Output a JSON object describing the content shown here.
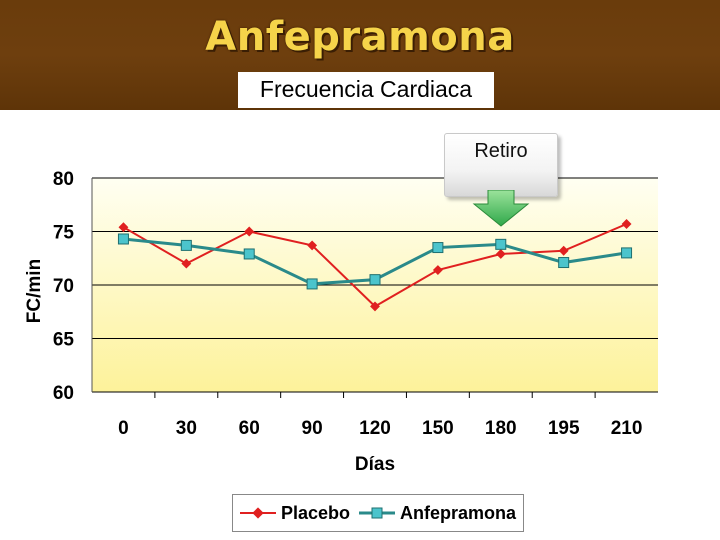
{
  "banner": {
    "title": "Anfepramona",
    "subtitle": "Frecuencia Cardiaca"
  },
  "annotation": {
    "label": "Retiro"
  },
  "colors": {
    "placebo": "#e02020",
    "anfepramona": "#2a8a8a",
    "marker_anf": "#4cc4cc"
  },
  "chart_data": {
    "type": "line",
    "categories": [
      "0",
      "30",
      "60",
      "90",
      "120",
      "150",
      "180",
      "195",
      "210"
    ],
    "series": [
      {
        "name": "Placebo",
        "values": [
          75.4,
          72.0,
          75.0,
          73.7,
          68.0,
          71.4,
          72.9,
          73.2,
          75.7
        ]
      },
      {
        "name": "Anfepramona",
        "values": [
          74.3,
          73.7,
          72.9,
          70.1,
          70.5,
          73.5,
          73.8,
          72.1,
          73.0
        ]
      }
    ],
    "xlabel": "Días",
    "ylabel": "FC/min",
    "ylim": [
      60,
      80
    ],
    "yticks": [
      60,
      65,
      70,
      75,
      80
    ],
    "grid": true,
    "legend_position": "bottom"
  }
}
